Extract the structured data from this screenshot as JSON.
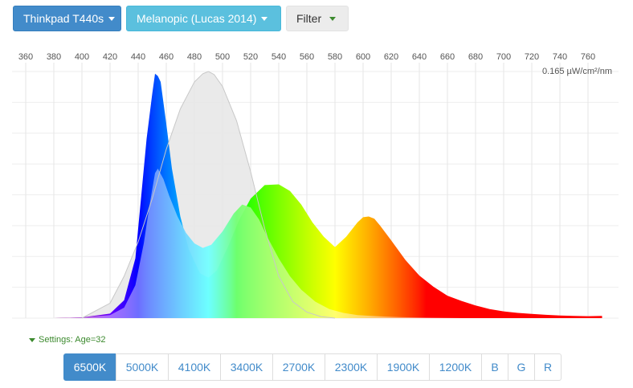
{
  "toolbar": {
    "device_label": "Thinkpad T440s",
    "curve_label": "Melanopic (Lucas 2014)",
    "filter_label": "Filter"
  },
  "settings": {
    "label": "Settings: Age=32"
  },
  "presets": [
    {
      "label": "6500K",
      "active": true
    },
    {
      "label": "5000K",
      "active": false
    },
    {
      "label": "4100K",
      "active": false
    },
    {
      "label": "3400K",
      "active": false
    },
    {
      "label": "2700K",
      "active": false
    },
    {
      "label": "2300K",
      "active": false
    },
    {
      "label": "1900K",
      "active": false
    },
    {
      "label": "1200K",
      "active": false
    },
    {
      "label": "B",
      "active": false
    },
    {
      "label": "G",
      "active": false
    },
    {
      "label": "R",
      "active": false
    }
  ],
  "colors": {
    "primary": "#428bca",
    "info": "#5bc0de",
    "accent_green": "#3c8a2e",
    "curve_fill": "#e6e6e6",
    "curve_stroke": "#c8c8c8"
  },
  "chart_data": {
    "type": "area",
    "xlim": [
      350,
      780
    ],
    "x_ticks": [
      360,
      380,
      400,
      420,
      440,
      460,
      480,
      500,
      520,
      540,
      560,
      580,
      600,
      620,
      640,
      660,
      680,
      700,
      720,
      740,
      760
    ],
    "y_max_label": "0.165 µW/cm²/nm",
    "ylim": [
      0,
      0.165
    ],
    "grid": true,
    "series": [
      {
        "role": "device-spectrum",
        "x": [
          380,
          400,
          420,
          430,
          438,
          442,
          446,
          450,
          452,
          454,
          456,
          460,
          464,
          470,
          476,
          484,
          490,
          496,
          504,
          512,
          520,
          530,
          540,
          548,
          556,
          564,
          572,
          580,
          588,
          596,
          600,
          604,
          608,
          612,
          620,
          630,
          640,
          650,
          660,
          670,
          680,
          690,
          700,
          710,
          720,
          730,
          740,
          750,
          760,
          770
        ],
        "y": [
          0.0,
          0.0005,
          0.003,
          0.012,
          0.04,
          0.08,
          0.12,
          0.15,
          0.1635,
          0.162,
          0.158,
          0.13,
          0.1,
          0.068,
          0.046,
          0.03,
          0.027,
          0.032,
          0.048,
          0.066,
          0.08,
          0.089,
          0.0895,
          0.085,
          0.076,
          0.064,
          0.0545,
          0.0475,
          0.0545,
          0.064,
          0.0675,
          0.068,
          0.0665,
          0.062,
          0.052,
          0.039,
          0.0285,
          0.021,
          0.015,
          0.0115,
          0.0085,
          0.006,
          0.0045,
          0.0035,
          0.0028,
          0.0022,
          0.0018,
          0.0015,
          0.0013,
          0.0015
        ]
      },
      {
        "role": "weighted-spectrum",
        "x": [
          380,
          400,
          420,
          430,
          438,
          444,
          448,
          452,
          454,
          458,
          462,
          468,
          474,
          480,
          486,
          492,
          500,
          508,
          514,
          520,
          526,
          532,
          540,
          548,
          556,
          566,
          576,
          586,
          596,
          606,
          616,
          626,
          640,
          656,
          672
        ],
        "y": [
          0.0,
          0.0005,
          0.002,
          0.007,
          0.022,
          0.05,
          0.075,
          0.097,
          0.1,
          0.093,
          0.082,
          0.068,
          0.057,
          0.05,
          0.047,
          0.049,
          0.058,
          0.07,
          0.076,
          0.074,
          0.066,
          0.054,
          0.04,
          0.028,
          0.019,
          0.011,
          0.006,
          0.0035,
          0.002,
          0.0015,
          0.001,
          0.0007,
          0.0004,
          0.0002,
          0.0
        ]
      },
      {
        "role": "action-spectrum-curve",
        "x": [
          400,
          420,
          430,
          440,
          450,
          460,
          470,
          480,
          486,
          490,
          494,
          500,
          510,
          520,
          530,
          540,
          550,
          560,
          570,
          580
        ],
        "y": [
          0.0,
          0.01,
          0.028,
          0.051,
          0.08,
          0.113,
          0.14,
          0.158,
          0.1635,
          0.165,
          0.163,
          0.155,
          0.132,
          0.098,
          0.06,
          0.028,
          0.011,
          0.004,
          0.001,
          0.0
        ]
      }
    ]
  }
}
